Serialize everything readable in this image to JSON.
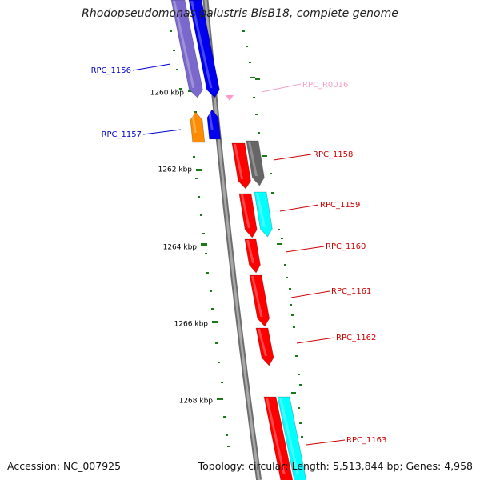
{
  "title": "Rhodopseudomonas palustris BisB18, complete genome",
  "accession": "Accession: NC_007925",
  "topology": "Topology: circular; Length: 5,513,844 bp; Genes: 4,958",
  "colors": {
    "backbone": "#8c8c8c",
    "tick": "#1a7a1a",
    "tick_label": "#000000",
    "label_blue": "#0000cc",
    "label_red": "#cc0000",
    "label_pink": "#f4a0c8"
  },
  "ruler": [
    {
      "label": "1260 kbp"
    },
    {
      "label": "1262 kbp"
    },
    {
      "label": "1264 kbp"
    },
    {
      "label": "1266 kbp"
    },
    {
      "label": "1268 kbp"
    }
  ],
  "features": [
    {
      "label": "RPC_1156",
      "color": "#7b68cc",
      "strand": "-",
      "ring": "outer"
    },
    {
      "label": "RPC_1156",
      "color": "#0000ee",
      "strand": "-",
      "ring": "inner"
    },
    {
      "label": "RPC_1157",
      "color": "#ff8c00",
      "strand": "-",
      "ring": "outer"
    },
    {
      "label": "RPC_1157",
      "color": "#0000ee",
      "strand": "-",
      "ring": "inner"
    },
    {
      "label": "RPC_R0016",
      "color": "#ff99cc",
      "strand": "+",
      "ring": "marker"
    },
    {
      "label": "RPC_1158",
      "color": "#ff0000",
      "strand": "+",
      "ring": "inner"
    },
    {
      "label": "RPC_1158",
      "color": "#666666",
      "strand": "+",
      "ring": "outer"
    },
    {
      "label": "RPC_1159",
      "color": "#ff0000",
      "strand": "+",
      "ring": "inner"
    },
    {
      "label": "RPC_1159",
      "color": "#00ffff",
      "strand": "+",
      "ring": "outer"
    },
    {
      "label": "RPC_1160",
      "color": "#ff0000",
      "strand": "+",
      "ring": "inner"
    },
    {
      "label": "RPC_1161",
      "color": "#ff0000",
      "strand": "+",
      "ring": "inner"
    },
    {
      "label": "RPC_1162",
      "color": "#ff0000",
      "strand": "+",
      "ring": "inner"
    },
    {
      "label": "RPC_1163",
      "color": "#ff0000",
      "strand": "+",
      "ring": "inner"
    },
    {
      "label": "RPC_1163",
      "color": "#00ffff",
      "strand": "+",
      "ring": "outer"
    }
  ],
  "labels": [
    {
      "text": "RPC_1156",
      "side": "left",
      "color": "#0000cc"
    },
    {
      "text": "RPC_1157",
      "side": "left",
      "color": "#0000cc"
    },
    {
      "text": "RPC_R0016",
      "side": "right",
      "color": "#f4a0c8"
    },
    {
      "text": "RPC_1158",
      "side": "right",
      "color": "#cc0000"
    },
    {
      "text": "RPC_1159",
      "side": "right",
      "color": "#cc0000"
    },
    {
      "text": "RPC_1160",
      "side": "right",
      "color": "#cc0000"
    },
    {
      "text": "RPC_1161",
      "side": "right",
      "color": "#cc0000"
    },
    {
      "text": "RPC_1162",
      "side": "right",
      "color": "#cc0000"
    },
    {
      "text": "RPC_1163",
      "side": "right",
      "color": "#cc0000"
    }
  ]
}
